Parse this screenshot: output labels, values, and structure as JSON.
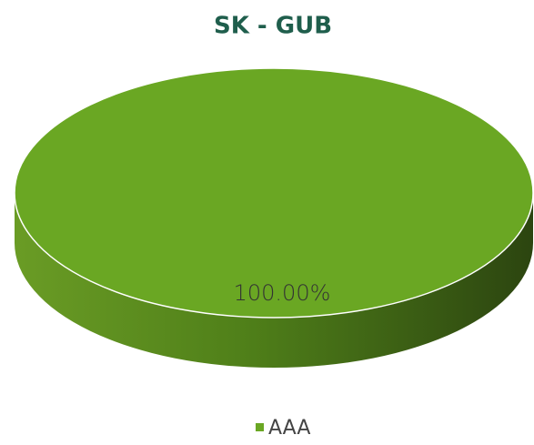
{
  "chart_data": {
    "type": "pie",
    "title": "SK - GUB",
    "categories": [
      "AAA"
    ],
    "values": [
      100
    ],
    "value_labels": [
      "100.00%"
    ],
    "colors": [
      "#6aa723"
    ],
    "legend": "bottom"
  }
}
